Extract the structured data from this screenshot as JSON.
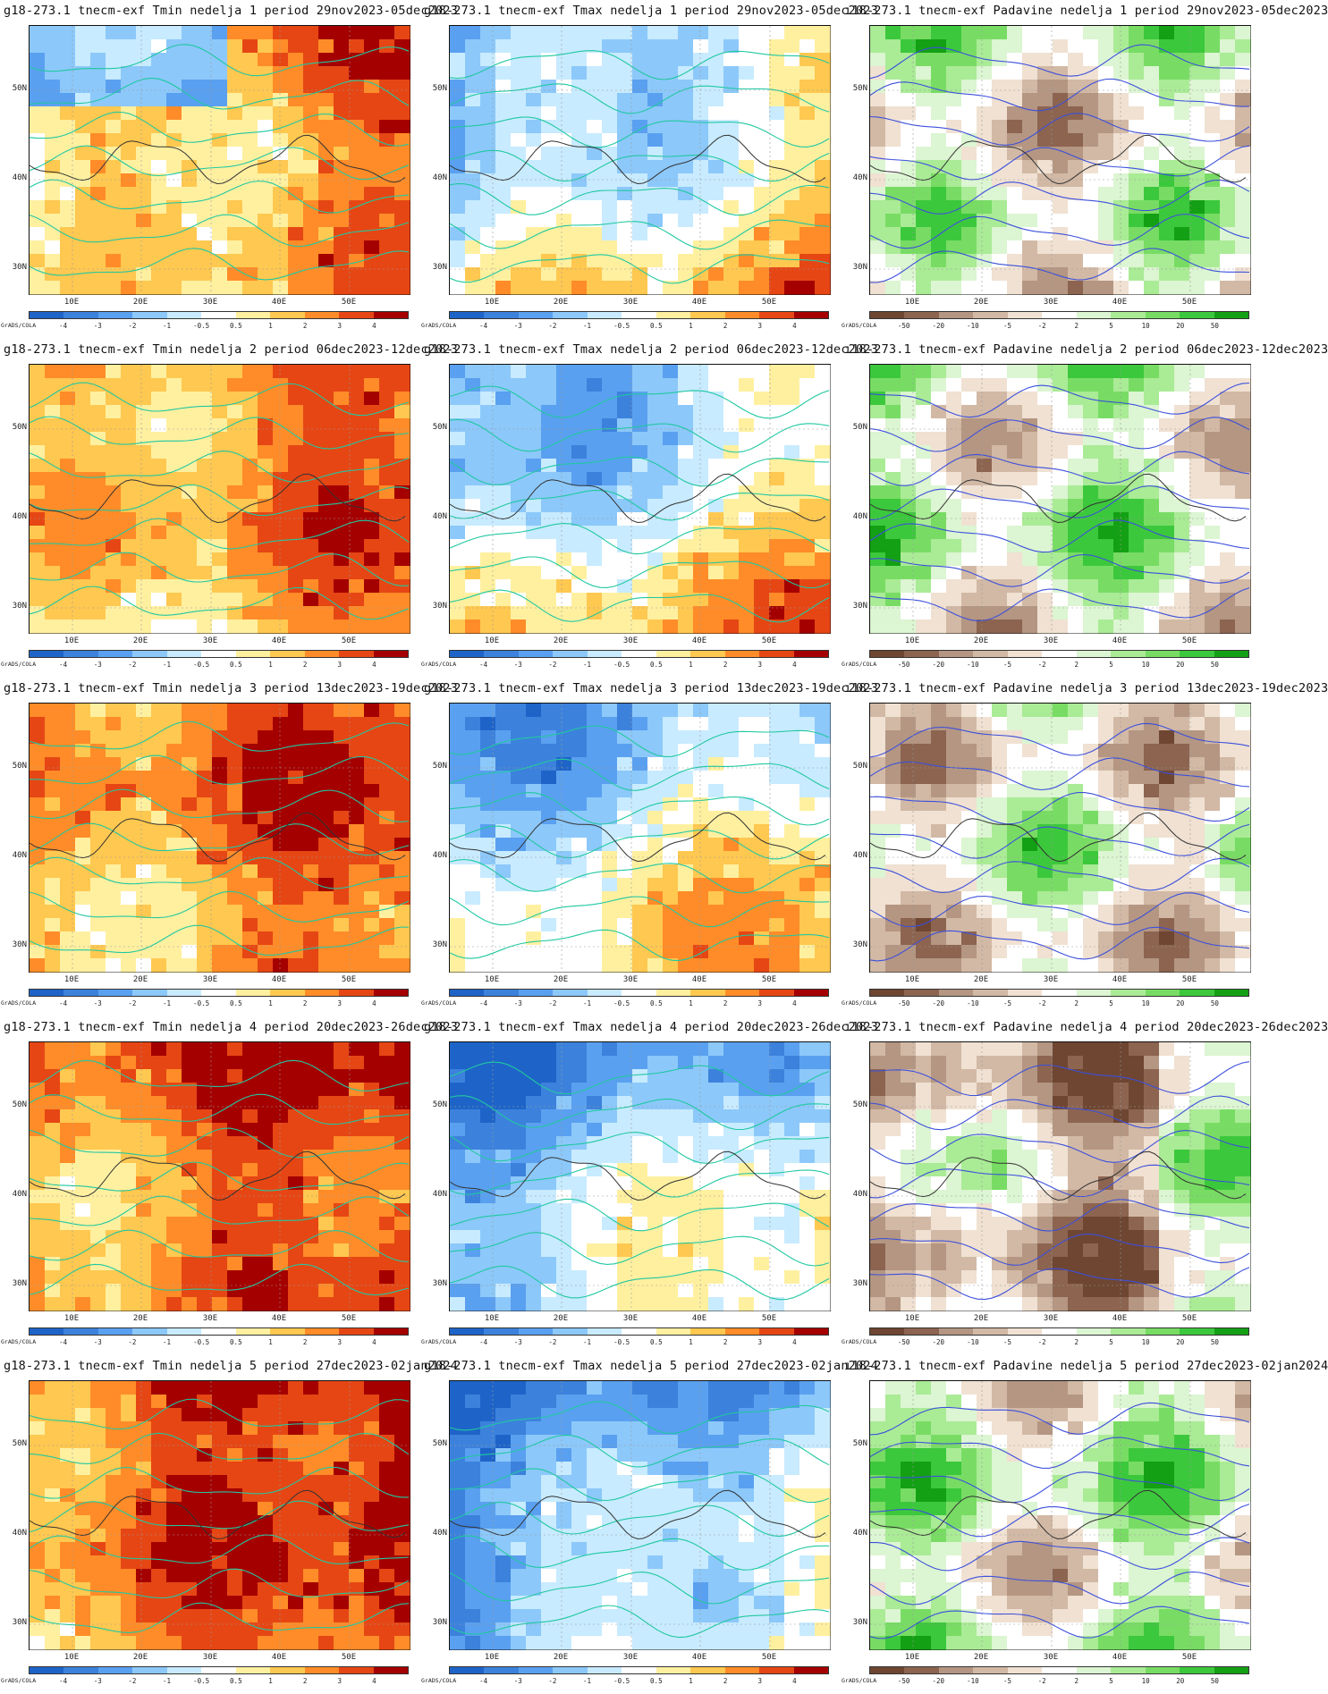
{
  "panels": [
    {
      "row": 1,
      "col": 1,
      "var": "tmin",
      "title": "g18-273.1 tnecm-exf Tmin nedelja 1 period 29nov2023-05dec2023"
    },
    {
      "row": 1,
      "col": 2,
      "var": "tmax",
      "title": "g18-273.1 tnecm-exf Tmax nedelja 1 period 29nov2023-05dec2023"
    },
    {
      "row": 1,
      "col": 3,
      "var": "pad",
      "title": "ı18-273.1 tnecm-exf Padavine nedelja 1 period 29nov2023-05dec2023"
    },
    {
      "row": 2,
      "col": 1,
      "var": "tmin",
      "title": "g18-273.1 tnecm-exf Tmin nedelja 2 period 06dec2023-12dec2023"
    },
    {
      "row": 2,
      "col": 2,
      "var": "tmax",
      "title": "g18-273.1 tnecm-exf Tmax nedelja 2 period 06dec2023-12dec2023"
    },
    {
      "row": 2,
      "col": 3,
      "var": "pad",
      "title": "ı18-273.1 tnecm-exf Padavine nedelja 2 period 06dec2023-12dec2023"
    },
    {
      "row": 3,
      "col": 1,
      "var": "tmin",
      "title": "g18-273.1 tnecm-exf Tmin nedelja 3 period 13dec2023-19dec2023"
    },
    {
      "row": 3,
      "col": 2,
      "var": "tmax",
      "title": "g18-273.1 tnecm-exf Tmax nedelja 3 period 13dec2023-19dec2023"
    },
    {
      "row": 3,
      "col": 3,
      "var": "pad",
      "title": "ı18-273.1 tnecm-exf Padavine nedelja 3 period 13dec2023-19dec2023"
    },
    {
      "row": 4,
      "col": 1,
      "var": "tmin",
      "title": "g18-273.1 tnecm-exf Tmin nedelja 4 period 20dec2023-26dec2023"
    },
    {
      "row": 4,
      "col": 2,
      "var": "tmax",
      "title": "g18-273.1 tnecm-exf Tmax nedelja 4 period 20dec2023-26dec2023"
    },
    {
      "row": 4,
      "col": 3,
      "var": "pad",
      "title": "ı18-273.1 tnecm-exf Padavine nedelja 4 period 20dec2023-26dec2023"
    },
    {
      "row": 5,
      "col": 1,
      "var": "tmin",
      "title": "g18-273.1 tnecm-exf Tmin nedelja 5 period 27dec2023-02jan2024"
    },
    {
      "row": 5,
      "col": 2,
      "var": "tmax",
      "title": "g18-273.1 tnecm-exf Tmax nedelja 5 period 27dec2023-02jan2024"
    },
    {
      "row": 5,
      "col": 3,
      "var": "pad",
      "title": "ı18-273.1 tnecm-exf Padavine nedelja 5 period 27dec2023-02jan2024"
    }
  ],
  "axes": {
    "lat_labels": [
      "50N",
      "40N",
      "30N"
    ],
    "lon_labels": [
      "10E",
      "20E",
      "30E",
      "40E",
      "50E"
    ]
  },
  "brand": "GrADS/COLA",
  "temp_scale": {
    "labels": [
      "-4",
      "-3",
      "-2",
      "-1",
      "-0.5",
      "0.5",
      "1",
      "2",
      "3",
      "4"
    ],
    "colors": [
      "#1e64c8",
      "#3c82dc",
      "#5aa0f0",
      "#8cc8fa",
      "#c8ebff",
      "#ffffff",
      "#fff0a0",
      "#ffc850",
      "#ff8c28",
      "#e64614",
      "#a50000"
    ]
  },
  "precip_scale": {
    "labels": [
      "-50",
      "-20",
      "-10",
      "-5",
      "-2",
      "2",
      "5",
      "10",
      "20",
      "50"
    ],
    "colors": [
      "#6e4632",
      "#8c6450",
      "#b49682",
      "#d2b9a5",
      "#f0e1d2",
      "#ffffff",
      "#dcf5d2",
      "#aaeb96",
      "#78dc64",
      "#3cc83c",
      "#14a014"
    ]
  }
}
